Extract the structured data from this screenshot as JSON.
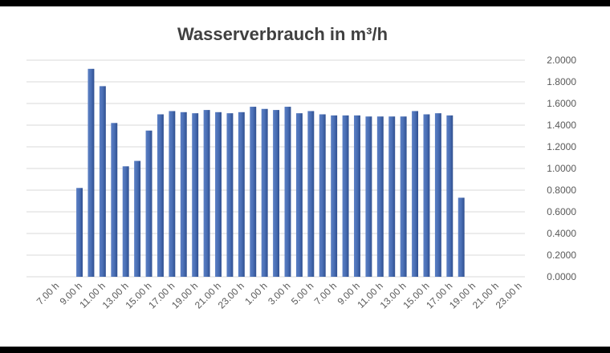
{
  "chart_data": {
    "type": "bar",
    "title": "Wasserverbrauch in m³/h",
    "xlabel": "",
    "ylabel": "",
    "ylim": [
      0,
      2
    ],
    "y_ticks": [
      "0.0000",
      "0.2000",
      "0.4000",
      "0.6000",
      "0.8000",
      "1.0000",
      "1.2000",
      "1.4000",
      "1.6000",
      "1.8000",
      "2.0000"
    ],
    "y_axis_position": "right",
    "grid": true,
    "bar_color": "#4a6fb5",
    "categories": [
      "7.00 h",
      "8.00 h",
      "9.00 h",
      "10.00 h",
      "11.00 h",
      "12.00 h",
      "13.00 h",
      "14.00 h",
      "15.00 h",
      "16.00 h",
      "17.00 h",
      "18.00 h",
      "19.00 h",
      "20.00 h",
      "21.00 h",
      "22.00 h",
      "23.00 h",
      "24.00 h",
      "1.00 h",
      "2.00 h",
      "3.00 h",
      "4.00 h",
      "5.00 h",
      "6.00 h",
      "7.00 h",
      "8.00 h",
      "9.00 h",
      "10.00 h",
      "11.00 h",
      "12.00 h",
      "13.00 h",
      "14.00 h",
      "15.00 h",
      "16.00 h",
      "17.00 h",
      "18.00 h",
      "19.00 h",
      "20.00 h",
      "21.00 h",
      "22.00 h",
      "23.00 h"
    ],
    "label_every": 2,
    "values": [
      0,
      0,
      0.82,
      1.92,
      1.76,
      1.42,
      1.02,
      1.07,
      1.35,
      1.5,
      1.53,
      1.52,
      1.51,
      1.54,
      1.52,
      1.51,
      1.52,
      1.57,
      1.55,
      1.54,
      1.57,
      1.51,
      1.53,
      1.5,
      1.49,
      1.49,
      1.49,
      1.48,
      1.48,
      1.48,
      1.48,
      1.53,
      1.5,
      1.51,
      1.49,
      0.73,
      0,
      0,
      0,
      0,
      0
    ]
  }
}
